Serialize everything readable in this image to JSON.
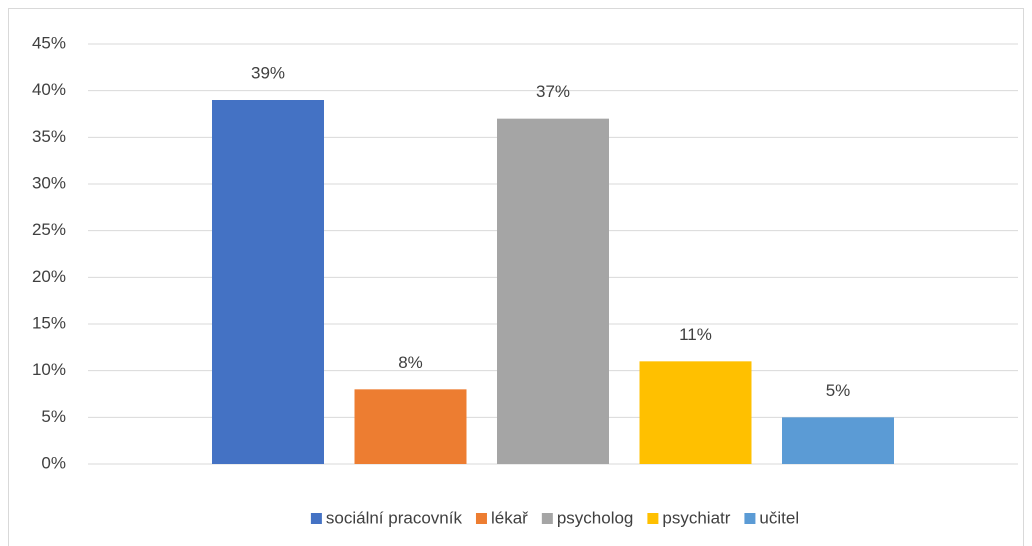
{
  "chart_data": {
    "type": "bar",
    "categories": [
      null
    ],
    "series": [
      {
        "name": "sociální pracovník",
        "color": "#4472c4",
        "values": [
          39
        ],
        "value_labels": [
          "39%"
        ]
      },
      {
        "name": "lékař",
        "color": "#ed7d31",
        "values": [
          8
        ],
        "value_labels": [
          "8%"
        ]
      },
      {
        "name": "psycholog",
        "color": "#a5a5a5",
        "values": [
          37
        ],
        "value_labels": [
          "37%"
        ]
      },
      {
        "name": "psychiatr",
        "color": "#ffc000",
        "values": [
          11
        ],
        "value_labels": [
          "11%"
        ]
      },
      {
        "name": "učitel",
        "color": "#5b9bd5",
        "values": [
          5
        ],
        "value_labels": [
          "5%"
        ]
      }
    ],
    "ylim": [
      0,
      45
    ],
    "yticks": [
      {
        "value": 0,
        "label": "0%"
      },
      {
        "value": 5,
        "label": "5%"
      },
      {
        "value": 10,
        "label": "10%"
      },
      {
        "value": 15,
        "label": "15%"
      },
      {
        "value": 20,
        "label": "20%"
      },
      {
        "value": 25,
        "label": "25%"
      },
      {
        "value": 30,
        "label": "30%"
      },
      {
        "value": 35,
        "label": "35%"
      },
      {
        "value": 40,
        "label": "40%"
      },
      {
        "value": 45,
        "label": "45%"
      }
    ],
    "grid": true,
    "legend": "bottom"
  }
}
